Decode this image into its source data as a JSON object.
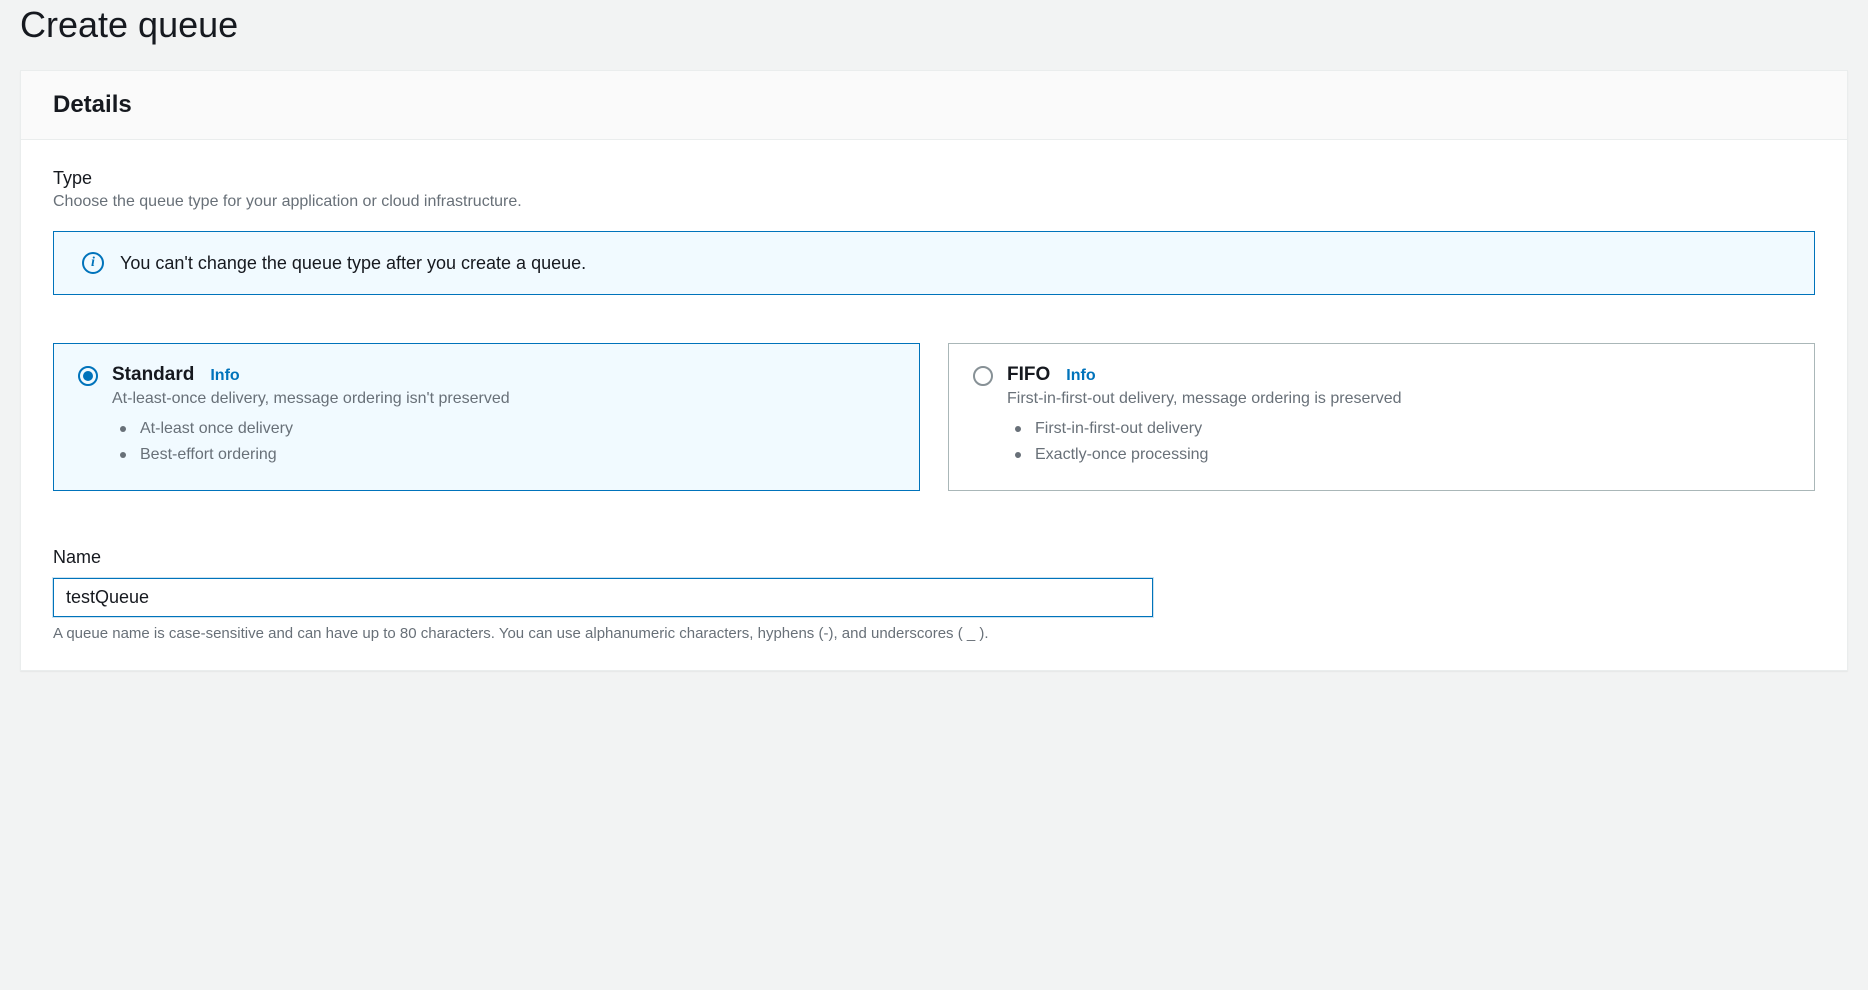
{
  "page": {
    "title": "Create queue"
  },
  "details": {
    "header": "Details",
    "type": {
      "label": "Type",
      "description": "Choose the queue type for your application or cloud infrastructure.",
      "banner": "You can't change the queue type after you create a queue.",
      "info_link_label": "Info",
      "options": [
        {
          "id": "standard",
          "title": "Standard",
          "subtitle": "At-least-once delivery, message ordering isn't preserved",
          "bullets": [
            "At-least once delivery",
            "Best-effort ordering"
          ],
          "selected": true
        },
        {
          "id": "fifo",
          "title": "FIFO",
          "subtitle": "First-in-first-out delivery, message ordering is preserved",
          "bullets": [
            "First-in-first-out delivery",
            "Exactly-once processing"
          ],
          "selected": false
        }
      ]
    },
    "name": {
      "label": "Name",
      "value": "testQueue",
      "hint": "A queue name is case-sensitive and can have up to 80 characters. You can use alphanumeric characters, hyphens (-), and underscores ( _ )."
    }
  },
  "colors": {
    "page_bg": "#f2f3f3",
    "panel_bg": "#ffffff",
    "border": "#eaeded",
    "text": "#16191f",
    "muted": "#687078",
    "accent": "#0073bb",
    "selected_bg": "#f1faff",
    "card_border": "#aab7b8"
  }
}
